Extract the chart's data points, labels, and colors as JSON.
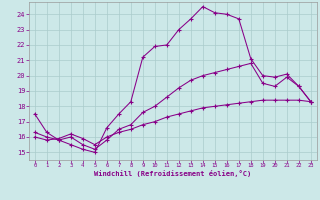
{
  "xlabel": "Windchill (Refroidissement éolien,°C)",
  "xlim": [
    -0.5,
    23.5
  ],
  "ylim": [
    14.5,
    24.8
  ],
  "xticks": [
    0,
    1,
    2,
    3,
    4,
    5,
    6,
    7,
    8,
    9,
    10,
    11,
    12,
    13,
    14,
    15,
    16,
    17,
    18,
    19,
    20,
    21,
    22,
    23
  ],
  "yticks": [
    15,
    16,
    17,
    18,
    19,
    20,
    21,
    22,
    23,
    24
  ],
  "bg_color": "#cce8e8",
  "line_color": "#880088",
  "grid_color": "#aacccc",
  "curve1_x": [
    0,
    1,
    2,
    3,
    4,
    5,
    6,
    7,
    8,
    9,
    10,
    11,
    12,
    13,
    14,
    15,
    16,
    17,
    18,
    19,
    20,
    21,
    22,
    23
  ],
  "curve1_y": [
    17.5,
    16.3,
    15.8,
    15.5,
    15.2,
    15.0,
    16.6,
    17.5,
    18.3,
    21.2,
    21.9,
    22.0,
    23.0,
    23.7,
    24.5,
    24.1,
    24.0,
    23.7,
    21.1,
    20.0,
    19.9,
    20.1,
    19.3,
    18.3
  ],
  "curve2_x": [
    0,
    1,
    2,
    3,
    4,
    5,
    6,
    7,
    8,
    9,
    10,
    11,
    12,
    13,
    14,
    15,
    16,
    17,
    18,
    19,
    20,
    21,
    22,
    23
  ],
  "curve2_y": [
    16.3,
    16.0,
    15.8,
    16.0,
    15.5,
    15.2,
    15.8,
    16.5,
    16.8,
    17.6,
    18.0,
    18.6,
    19.2,
    19.7,
    20.0,
    20.2,
    20.4,
    20.6,
    20.8,
    19.5,
    19.3,
    19.9,
    19.3,
    18.3
  ],
  "curve3_x": [
    0,
    1,
    2,
    3,
    4,
    5,
    6,
    7,
    8,
    9,
    10,
    11,
    12,
    13,
    14,
    15,
    16,
    17,
    18,
    19,
    20,
    21,
    22,
    23
  ],
  "curve3_y": [
    16.0,
    15.8,
    15.9,
    16.2,
    15.9,
    15.5,
    16.0,
    16.3,
    16.5,
    16.8,
    17.0,
    17.3,
    17.5,
    17.7,
    17.9,
    18.0,
    18.1,
    18.2,
    18.3,
    18.4,
    18.4,
    18.4,
    18.4,
    18.3
  ],
  "marker": "+"
}
